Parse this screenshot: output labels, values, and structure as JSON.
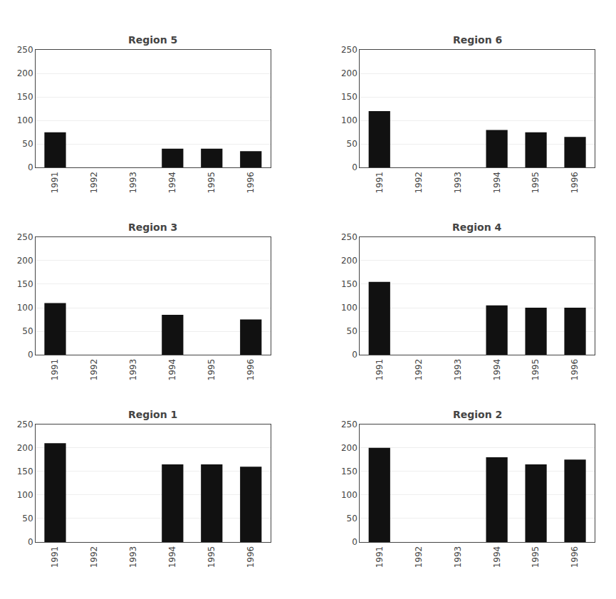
{
  "chart_data": [
    {
      "type": "bar",
      "title": "Region 5",
      "categories": [
        "1991",
        "1992",
        "1993",
        "1994",
        "1995",
        "1996"
      ],
      "values": [
        75,
        0,
        0,
        40,
        40,
        35
      ],
      "color": "#111111",
      "ylim": [
        0,
        250
      ],
      "yticks": [
        0,
        50,
        100,
        150,
        200,
        250
      ],
      "grid": true
    },
    {
      "type": "bar",
      "title": "Region 6",
      "categories": [
        "1991",
        "1992",
        "1993",
        "1994",
        "1995",
        "1996"
      ],
      "values": [
        120,
        0,
        0,
        80,
        75,
        65
      ],
      "color": "#111111",
      "ylim": [
        0,
        250
      ],
      "yticks": [
        0,
        50,
        100,
        150,
        200,
        250
      ],
      "grid": true
    },
    {
      "type": "bar",
      "title": "Region 3",
      "categories": [
        "1991",
        "1992",
        "1993",
        "1994",
        "1995",
        "1996"
      ],
      "values": [
        110,
        0,
        0,
        85,
        0,
        75
      ],
      "color": "#111111",
      "ylim": [
        0,
        250
      ],
      "yticks": [
        0,
        50,
        100,
        150,
        200,
        250
      ],
      "grid": true
    },
    {
      "type": "bar",
      "title": "Region 4",
      "categories": [
        "1991",
        "1992",
        "1993",
        "1994",
        "1995",
        "1996"
      ],
      "values": [
        155,
        0,
        0,
        105,
        100,
        100
      ],
      "color": "#111111",
      "ylim": [
        0,
        250
      ],
      "yticks": [
        0,
        50,
        100,
        150,
        200,
        250
      ],
      "grid": true
    },
    {
      "type": "bar",
      "title": "Region 1",
      "categories": [
        "1991",
        "1992",
        "1993",
        "1994",
        "1995",
        "1996"
      ],
      "values": [
        210,
        0,
        0,
        165,
        165,
        160
      ],
      "color": "#111111",
      "ylim": [
        0,
        250
      ],
      "yticks": [
        0,
        50,
        100,
        150,
        200,
        250
      ],
      "grid": true
    },
    {
      "type": "bar",
      "title": "Region 2",
      "categories": [
        "1991",
        "1992",
        "1993",
        "1994",
        "1995",
        "1996"
      ],
      "values": [
        200,
        0,
        0,
        180,
        165,
        175
      ],
      "color": "#111111",
      "ylim": [
        0,
        250
      ],
      "yticks": [
        0,
        50,
        100,
        150,
        200,
        250
      ],
      "grid": true
    }
  ]
}
